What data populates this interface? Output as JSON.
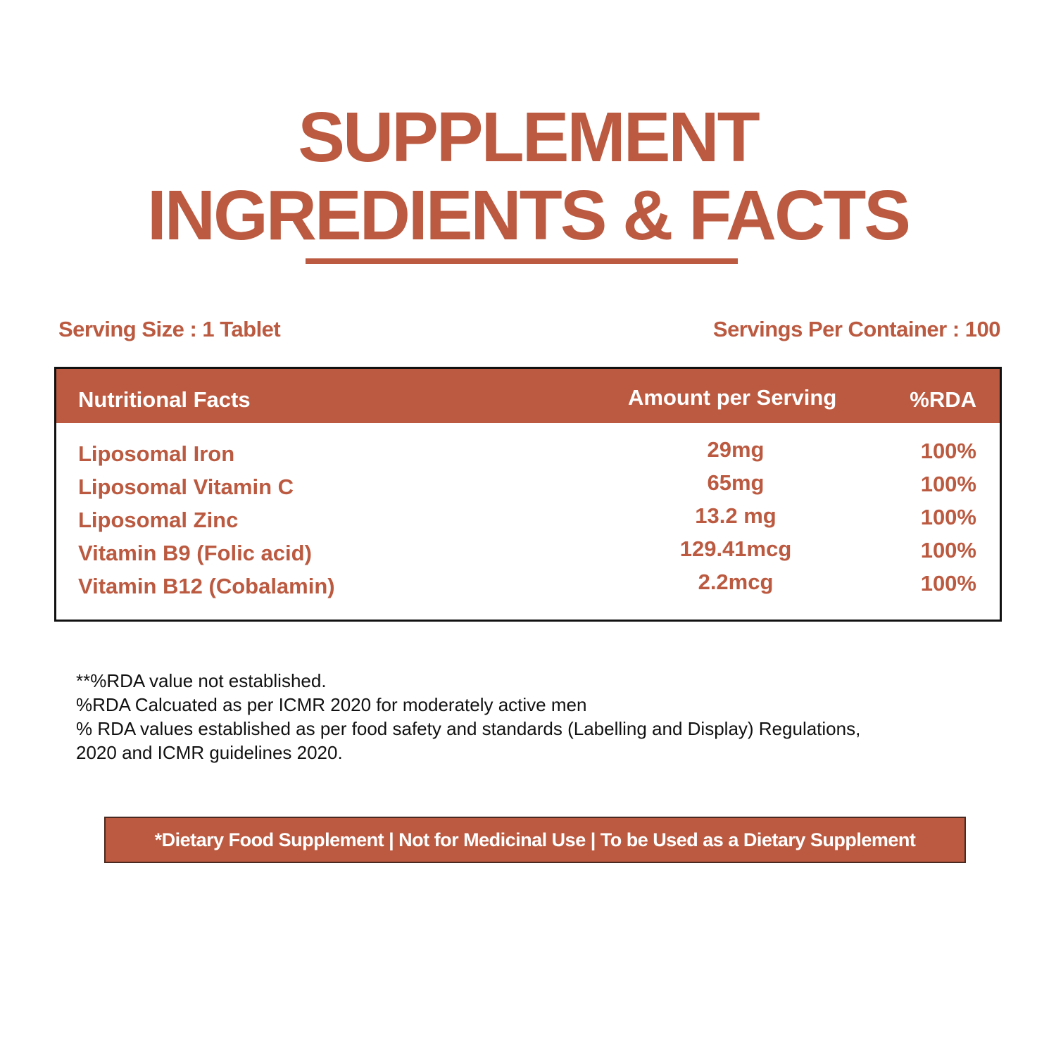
{
  "title": {
    "line1": "SUPPLEMENT",
    "line2": "INGREDIENTS & FACTS"
  },
  "serving": {
    "size": "Serving Size : 1 Tablet",
    "per_container": "Servings Per Container : 100"
  },
  "table": {
    "headers": [
      "Nutritional Facts",
      "Amount per Serving",
      "%RDA"
    ],
    "rows": [
      {
        "name": "Liposomal Iron",
        "amount": "29mg",
        "rda": "100%"
      },
      {
        "name": "Liposomal Vitamin C",
        "amount": "65mg",
        "rda": "100%"
      },
      {
        "name": "Liposomal Zinc",
        "amount": "13.2 mg",
        "rda": "100%"
      },
      {
        "name": "Vitamin B9 (Folic acid)",
        "amount": "129.41mcg",
        "rda": "100%"
      },
      {
        "name": "Vitamin B12 (Cobalamin)",
        "amount": "2.2mcg",
        "rda": "100%"
      }
    ]
  },
  "notes": [
    "**%RDA value not established.",
    "%RDA Calcuated as per ICMR 2020 for moderately active men",
    "% RDA values established as per food safety and standards (Labelling and Display) Regulations,",
    "2020 and ICMR guidelines 2020."
  ],
  "banner": "*Dietary Food Supplement | Not for Medicinal Use | To be Used as a Dietary Supplement",
  "colors": {
    "accent": "#bb5a40",
    "text": "#111111"
  }
}
